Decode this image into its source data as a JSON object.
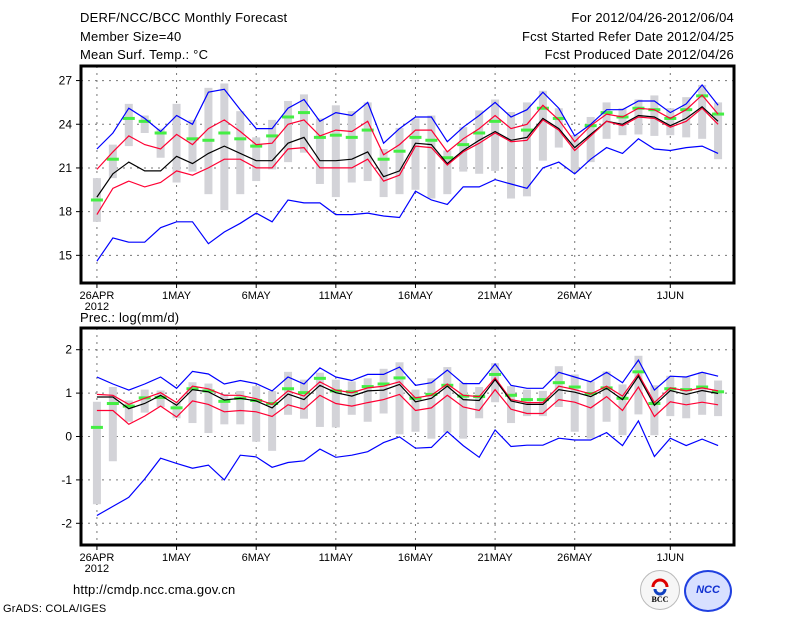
{
  "header": {
    "title": "DERF/NCC/BCC Monthly Forecast",
    "member_size": "Member Size=40",
    "variable": "Mean Surf. Temp.: °C",
    "period": "For 2012/04/26-2012/06/04",
    "started": "Fcst Started Refer Date 2012/04/25",
    "produced": "Fcst Produced Date 2012/04/26"
  },
  "footer": {
    "url": "http://cmdp.ncc.cma.gov.cn",
    "credit": "GrADS: COLA/IGES",
    "logo_bcc": "BCC",
    "logo_ncc": "NCC"
  },
  "colors": {
    "envelope": "#0000ff",
    "spread": "#ff0033",
    "mean": "#000000",
    "obs": "#44ee44",
    "range": "#d3d3d8"
  },
  "chart_data": [
    {
      "type": "line",
      "title": "Mean Surf. Temp.: °C",
      "ylabel": "",
      "ylim": [
        13.1,
        28.0
      ],
      "xlim": [
        -1,
        40
      ],
      "yticks": [
        15,
        18,
        21,
        24,
        27
      ],
      "xticks": [
        {
          "label": "26APR",
          "day": 0
        },
        {
          "label": "1MAY",
          "day": 5
        },
        {
          "label": "6MAY",
          "day": 10
        },
        {
          "label": "11MAY",
          "day": 15
        },
        {
          "label": "16MAY",
          "day": 20
        },
        {
          "label": "21MAY",
          "day": 25
        },
        {
          "label": "26MAY",
          "day": 30
        },
        {
          "label": "1JUN",
          "day": 36
        }
      ],
      "xtick_sublabel": "2012",
      "grid": true,
      "range_max": [
        20.3,
        22.6,
        25.4,
        24.6,
        23.7,
        25.4,
        24.3,
        26.5,
        26.8,
        24.9,
        23.1,
        24.3,
        25.6,
        26.05,
        24.4,
        25.3,
        24.9,
        25.5,
        22.3,
        23.75,
        24.4,
        24.6,
        22.2,
        23.8,
        24.95,
        25.7,
        24.84,
        25.5,
        26.3,
        25.1,
        23.25,
        24.5,
        25.5,
        25.1,
        25.7,
        25.98,
        25.1,
        25.86,
        26.7,
        25.5
      ],
      "range_min": [
        17.3,
        20.3,
        22.5,
        23.4,
        21.7,
        20.0,
        20.75,
        19.2,
        18.1,
        19.2,
        20.1,
        20.9,
        21.4,
        22.05,
        19.9,
        19.0,
        20.0,
        20.1,
        19.0,
        19.2,
        19.5,
        18.9,
        19.2,
        20.75,
        20.6,
        20.8,
        18.9,
        19.05,
        21.5,
        22.4,
        20.75,
        21.4,
        23.0,
        23.25,
        23.3,
        23.2,
        23.25,
        23.1,
        23.0,
        21.6
      ],
      "obs": [
        18.8,
        21.6,
        24.4,
        24.2,
        23.4,
        null,
        23.0,
        22.9,
        23.4,
        23.0,
        22.5,
        23.2,
        24.5,
        24.8,
        23.1,
        23.25,
        23.1,
        23.6,
        21.6,
        22.15,
        23.1,
        22.9,
        21.7,
        22.6,
        23.4,
        24.2,
        null,
        23.6,
        25.1,
        24.4,
        null,
        23.9,
        24.8,
        24.5,
        25.1,
        25.0,
        24.4,
        25.0,
        25.95,
        24.7
      ],
      "series": [
        {
          "name": "upper envelope",
          "color": "envelope",
          "values": [
            22.3,
            23.4,
            25.1,
            24.4,
            23.5,
            24.6,
            24.0,
            26.2,
            26.4,
            25.0,
            23.7,
            23.7,
            25.1,
            25.7,
            24.2,
            24.8,
            24.6,
            25.5,
            22.7,
            23.7,
            24.5,
            24.5,
            22.8,
            23.8,
            24.6,
            25.5,
            24.5,
            25.0,
            26.2,
            25.1,
            23.2,
            24.0,
            25.0,
            25.0,
            25.6,
            25.6,
            24.8,
            25.4,
            26.7,
            25.3
          ]
        },
        {
          "name": "upper spread",
          "color": "spread",
          "values": [
            20.9,
            22.1,
            23.2,
            22.6,
            22.3,
            23.3,
            22.6,
            23.7,
            24.3,
            23.5,
            22.6,
            22.7,
            24.0,
            24.3,
            23.2,
            23.6,
            23.5,
            24.2,
            21.9,
            22.6,
            23.6,
            23.6,
            22.1,
            23.0,
            23.7,
            24.6,
            23.7,
            24.0,
            25.3,
            24.3,
            22.8,
            23.9,
            24.7,
            24.5,
            25.1,
            25.0,
            24.4,
            25.0,
            26.0,
            24.7
          ]
        },
        {
          "name": "ensemble mean",
          "color": "mean",
          "values": [
            19.0,
            20.6,
            21.4,
            20.8,
            20.8,
            21.8,
            21.3,
            22.0,
            22.5,
            22.0,
            21.5,
            21.5,
            22.7,
            23.1,
            21.5,
            21.5,
            21.6,
            22.1,
            20.4,
            20.8,
            22.7,
            22.6,
            21.3,
            22.2,
            22.9,
            23.5,
            22.9,
            23.1,
            24.4,
            23.7,
            22.4,
            23.3,
            24.2,
            24.0,
            24.6,
            24.5,
            23.9,
            24.4,
            25.2,
            24.2
          ]
        },
        {
          "name": "lower spread",
          "color": "spread",
          "values": [
            17.8,
            19.6,
            20.1,
            19.7,
            20.0,
            20.8,
            20.5,
            21.0,
            21.6,
            21.6,
            21.0,
            21.0,
            22.3,
            22.4,
            21.0,
            21.0,
            21.0,
            21.6,
            20.1,
            20.5,
            22.5,
            22.4,
            21.2,
            22.1,
            22.7,
            23.4,
            22.8,
            22.9,
            24.3,
            23.6,
            22.2,
            23.2,
            24.2,
            23.9,
            24.5,
            24.4,
            23.8,
            24.2,
            25.1,
            24.0
          ]
        },
        {
          "name": "lower envelope",
          "color": "envelope",
          "values": [
            14.6,
            16.2,
            15.9,
            15.9,
            16.9,
            17.3,
            17.3,
            15.8,
            16.6,
            17.2,
            17.9,
            17.3,
            18.8,
            18.6,
            18.6,
            17.8,
            17.8,
            17.9,
            17.7,
            17.6,
            19.4,
            18.8,
            18.5,
            19.7,
            19.7,
            20.2,
            19.9,
            19.6,
            21.0,
            21.4,
            20.6,
            21.6,
            22.4,
            22.0,
            23.0,
            22.3,
            22.2,
            22.4,
            22.5,
            22.0
          ]
        }
      ]
    },
    {
      "type": "line",
      "title": "Prec.: log(mm/d)",
      "ylabel": "",
      "ylim": [
        -2.5,
        2.5
      ],
      "xlim": [
        -1,
        40
      ],
      "yticks": [
        -2,
        -1,
        0,
        1,
        2
      ],
      "xticks": [
        {
          "label": "26APR",
          "day": 0
        },
        {
          "label": "1MAY",
          "day": 5
        },
        {
          "label": "6MAY",
          "day": 10
        },
        {
          "label": "11MAY",
          "day": 15
        },
        {
          "label": "16MAY",
          "day": 20
        },
        {
          "label": "21MAY",
          "day": 25
        },
        {
          "label": "26MAY",
          "day": 30
        },
        {
          "label": "1JUN",
          "day": 36
        }
      ],
      "xtick_sublabel": "2012",
      "grid": true,
      "range_max": [
        0.8,
        1.14,
        0.83,
        1.08,
        1.06,
        0.78,
        1.25,
        1.22,
        0.98,
        1.05,
        1.16,
        1.05,
        1.49,
        1.31,
        1.47,
        1.31,
        1.27,
        1.34,
        1.56,
        1.71,
        1.08,
        1.34,
        1.6,
        1.24,
        1.14,
        1.69,
        1.16,
        1.08,
        1.05,
        1.62,
        1.43,
        1.27,
        1.5,
        1.2,
        1.86,
        1.18,
        1.4,
        1.37,
        1.48,
        1.29
      ],
      "range_min": [
        -1.56,
        -0.57,
        0.34,
        0.55,
        0.68,
        0.42,
        0.31,
        0.08,
        0.28,
        0.28,
        -0.12,
        -0.33,
        0.5,
        0.41,
        0.22,
        0.21,
        0.5,
        0.34,
        0.53,
        0.05,
        0.11,
        -0.05,
        0.09,
        -0.05,
        0.42,
        0.79,
        0.31,
        0.47,
        0.47,
        0.68,
        0.11,
        -0.05,
        0.34,
        0.03,
        0.51,
        0.03,
        0.47,
        0.42,
        0.5,
        0.47
      ],
      "obs": [
        0.21,
        0.76,
        0.7,
        0.89,
        0.9,
        0.66,
        1.1,
        1.05,
        0.81,
        0.88,
        0.83,
        0.76,
        1.1,
        1.01,
        1.34,
        1.05,
        1.03,
        1.15,
        1.21,
        1.35,
        0.88,
        0.97,
        1.18,
        0.93,
        0.92,
        1.43,
        0.95,
        0.85,
        0.85,
        1.24,
        1.14,
        0.99,
        1.12,
        0.88,
        1.49,
        0.76,
        1.1,
        1.08,
        1.14,
        1.03
      ],
      "series": [
        {
          "name": "upper envelope",
          "color": "envelope",
          "values": [
            1.37,
            1.21,
            1.07,
            1.21,
            1.37,
            1.11,
            1.5,
            1.44,
            1.21,
            1.29,
            1.22,
            1.05,
            1.37,
            1.21,
            1.58,
            1.37,
            1.29,
            1.43,
            1.43,
            1.6,
            1.18,
            1.24,
            1.53,
            1.22,
            1.22,
            1.67,
            1.18,
            1.11,
            1.11,
            1.48,
            1.37,
            1.26,
            1.48,
            1.24,
            1.76,
            1.07,
            1.39,
            1.37,
            1.48,
            1.39
          ]
        },
        {
          "name": "upper spread",
          "color": "spread",
          "values": [
            0.97,
            0.95,
            0.74,
            0.88,
            1.01,
            0.78,
            1.16,
            1.1,
            0.95,
            0.95,
            0.87,
            0.74,
            1.05,
            0.93,
            1.26,
            1.07,
            1.01,
            1.12,
            1.16,
            1.26,
            0.89,
            0.95,
            1.21,
            0.95,
            0.92,
            1.35,
            0.85,
            0.78,
            0.78,
            1.16,
            1.08,
            0.98,
            1.16,
            0.93,
            1.44,
            0.78,
            1.12,
            1.05,
            1.12,
            1.05
          ]
        },
        {
          "name": "ensemble mean",
          "color": "mean",
          "values": [
            0.91,
            0.91,
            0.64,
            0.76,
            0.95,
            0.72,
            1.08,
            1.03,
            0.84,
            0.88,
            0.82,
            0.66,
            0.98,
            0.85,
            1.18,
            1.01,
            0.93,
            1.05,
            1.07,
            1.2,
            0.8,
            0.88,
            1.16,
            0.85,
            0.83,
            1.31,
            0.82,
            0.74,
            0.74,
            1.08,
            1.02,
            0.92,
            1.11,
            0.85,
            1.39,
            0.72,
            1.06,
            0.97,
            1.06,
            0.99
          ]
        },
        {
          "name": "lower spread",
          "color": "spread",
          "values": [
            0.6,
            0.6,
            0.28,
            0.47,
            0.7,
            0.45,
            0.82,
            0.74,
            0.57,
            0.6,
            0.57,
            0.46,
            0.73,
            0.63,
            0.95,
            0.76,
            0.7,
            0.78,
            0.85,
            0.97,
            0.6,
            0.66,
            0.95,
            0.68,
            0.6,
            1.08,
            0.63,
            0.53,
            0.53,
            0.85,
            0.79,
            0.66,
            0.92,
            0.6,
            1.14,
            0.46,
            0.8,
            0.73,
            0.79,
            0.73
          ]
        },
        {
          "name": "lower envelope",
          "color": "envelope",
          "values": [
            -1.82,
            -1.61,
            -1.4,
            -0.98,
            -0.5,
            -0.62,
            -0.73,
            -0.66,
            -1.0,
            -0.43,
            -0.47,
            -0.71,
            -0.6,
            -0.56,
            -0.29,
            -0.48,
            -0.43,
            -0.35,
            -0.14,
            -0.01,
            -0.27,
            -0.25,
            0.11,
            -0.21,
            -0.48,
            0.15,
            -0.23,
            -0.2,
            -0.2,
            -0.04,
            -0.08,
            -0.08,
            0.09,
            -0.21,
            0.36,
            -0.46,
            -0.04,
            -0.21,
            -0.06,
            -0.21
          ]
        }
      ]
    }
  ]
}
